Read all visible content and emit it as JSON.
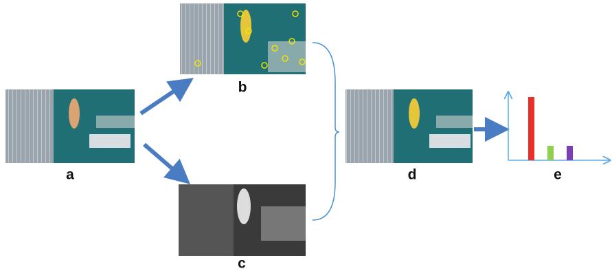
{
  "labels": {
    "a": "a",
    "b": "b",
    "c": "c",
    "d": "d",
    "e": "e"
  }
}
